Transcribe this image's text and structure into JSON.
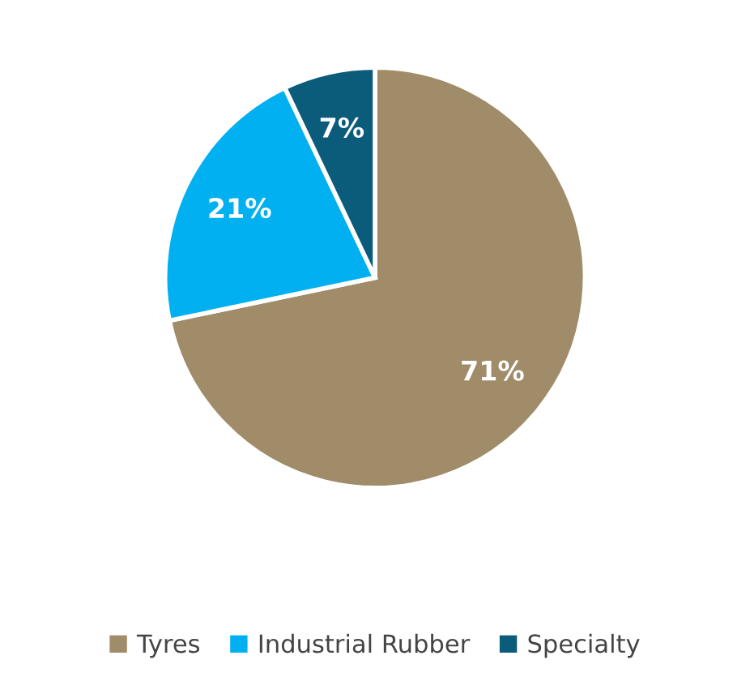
{
  "chart_data": {
    "type": "pie",
    "categories": [
      "Tyres",
      "Industrial Rubber",
      "Specialty"
    ],
    "values": [
      71,
      21,
      7
    ],
    "colors": [
      "#a08c69",
      "#00b0f0",
      "#0b5b7a"
    ],
    "value_labels": [
      "71%",
      "21%",
      "7%"
    ],
    "legend": "bottom"
  }
}
